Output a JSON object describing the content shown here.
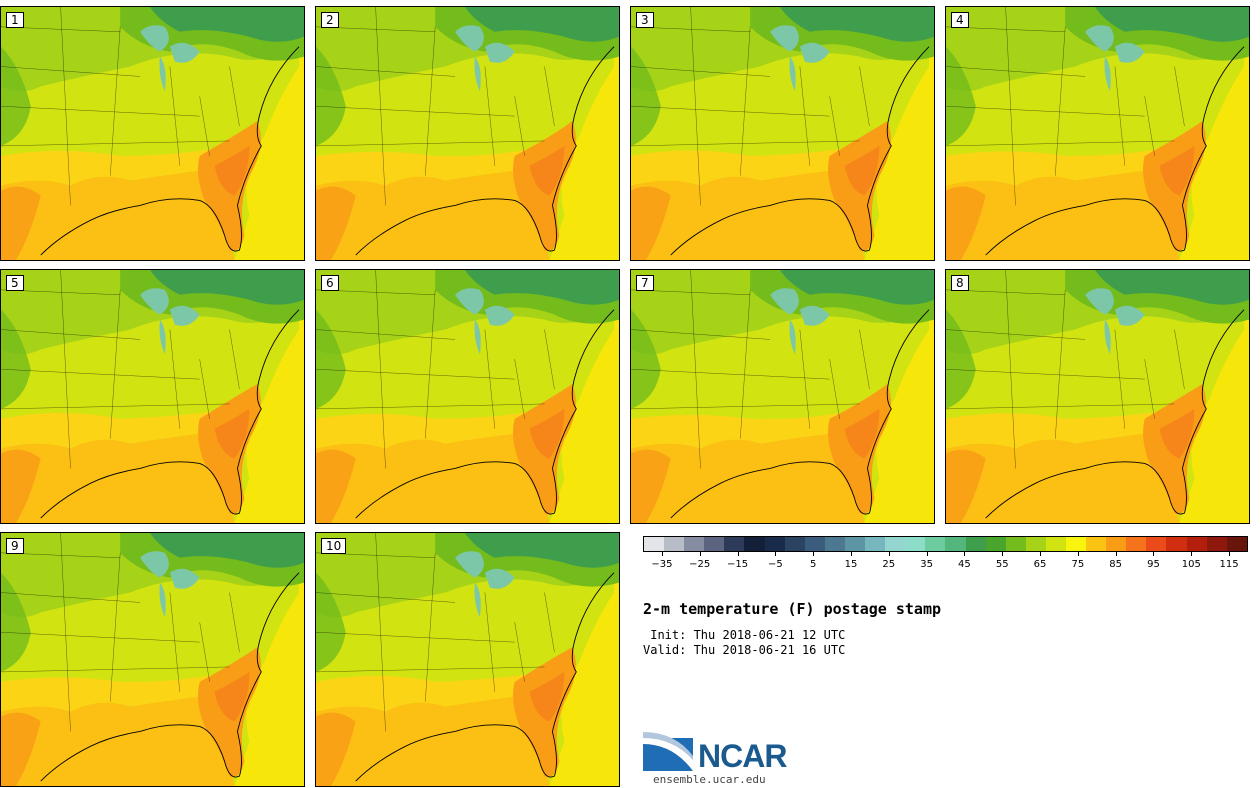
{
  "panels": [
    {
      "label": "1"
    },
    {
      "label": "2"
    },
    {
      "label": "3"
    },
    {
      "label": "4"
    },
    {
      "label": "5"
    },
    {
      "label": "6"
    },
    {
      "label": "7"
    },
    {
      "label": "8"
    },
    {
      "label": "9"
    },
    {
      "label": "10"
    }
  ],
  "colorbar": {
    "colors": [
      "#e3e5e8",
      "#b8bcc6",
      "#868da0",
      "#5b6580",
      "#2e3a5a",
      "#141f3a",
      "#1a2a4a",
      "#2b4262",
      "#3c5c7e",
      "#4c7892",
      "#5d95a5",
      "#77b6bd",
      "#94d6cf",
      "#8bdcc8",
      "#6dcc9e",
      "#52b67d",
      "#3f9e4b",
      "#4aa52d",
      "#74bb1c",
      "#a6d317",
      "#d1e310",
      "#f9f40d",
      "#fbc413",
      "#f99c16",
      "#f6721b",
      "#ea4b18",
      "#d02e10",
      "#b31f0c",
      "#8d180b",
      "#6a150c"
    ],
    "tick_labels": [
      "−35",
      "−25",
      "−15",
      "−5",
      "5",
      "15",
      "25",
      "35",
      "45",
      "55",
      "65",
      "75",
      "85",
      "95",
      "105",
      "115"
    ],
    "tick_values": [
      -35,
      -25,
      -15,
      -5,
      5,
      15,
      25,
      35,
      45,
      55,
      65,
      75,
      85,
      95,
      105,
      115
    ],
    "range": [
      -40,
      120
    ]
  },
  "title": "2-m temperature (F) postage stamp",
  "init_line": " Init: Thu 2018-06-21 12 UTC",
  "valid_line": "Valid: Thu 2018-06-21 16 UTC",
  "logo": {
    "text": "NCAR",
    "url_text": "ensemble.ucar.edu"
  },
  "map_colors": {
    "ocean": "#f6e60a",
    "gulf": "#fbc013",
    "hot": "#f99c16",
    "hotter": "#f6821b",
    "warm": "#fbd515",
    "mild": "#d1e310",
    "cool": "#a6d317",
    "cooler": "#74bb1c",
    "cold": "#3f9e4b",
    "lakes": "#7cc7a8"
  }
}
